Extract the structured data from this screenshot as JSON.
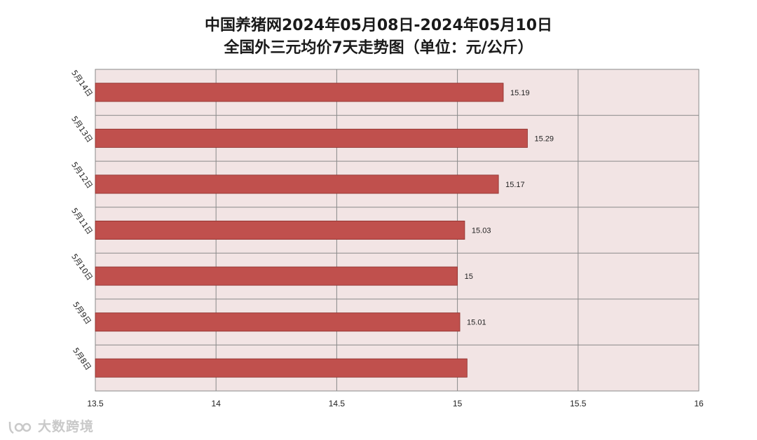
{
  "chart_data": {
    "type": "bar",
    "orientation": "horizontal",
    "title": "中国养猪网2024年05月08日-2024年05月10日",
    "subtitle": "全国外三元均价7天走势图（单位：元/公斤）",
    "categories": [
      "5月14日",
      "5月13日",
      "5月12日",
      "5月11日",
      "5月10日",
      "5月9日",
      "5月8日"
    ],
    "values": [
      15.19,
      15.29,
      15.17,
      15.03,
      15,
      15.01,
      15.04
    ],
    "data_labels": [
      "15.19",
      "15.29",
      "15.17",
      "15.03",
      "15",
      "15.01",
      ""
    ],
    "xlim": [
      13.5,
      16
    ],
    "x_ticks": [
      "13.5",
      "14",
      "14.5",
      "15",
      "15.5",
      "16"
    ],
    "grid": true,
    "bar_color": "#c0504d",
    "plot_background": "#f2e4e4"
  },
  "watermark": "大数跨境"
}
